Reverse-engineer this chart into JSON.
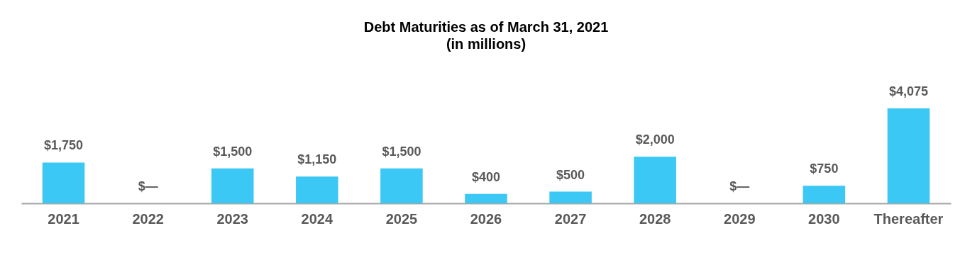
{
  "chart_data": {
    "type": "bar",
    "title": "Debt Maturities as of March 31, 2021",
    "subtitle": "(in millions)",
    "categories": [
      "2021",
      "2022",
      "2023",
      "2024",
      "2025",
      "2026",
      "2027",
      "2028",
      "2029",
      "2030",
      "Thereafter"
    ],
    "values": [
      1750,
      0,
      1500,
      1150,
      1500,
      400,
      500,
      2000,
      0,
      750,
      4075
    ],
    "value_labels": [
      "$1,750",
      "$—",
      "$1,500",
      "$1,150",
      "$1,500",
      "$400",
      "$500",
      "$2,000",
      "$—",
      "$750",
      "$4,075"
    ],
    "color": "#3bc8f5"
  }
}
